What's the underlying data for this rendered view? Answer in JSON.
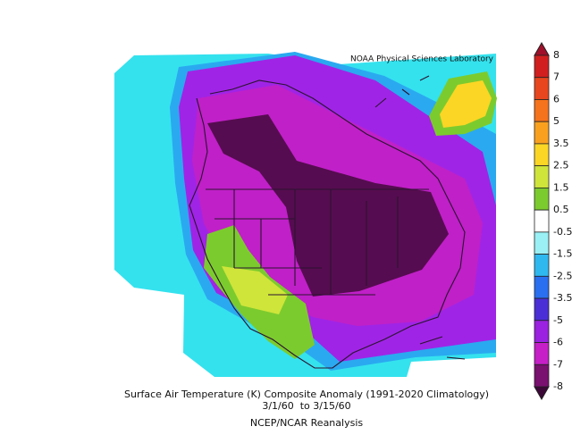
{
  "header": {
    "credit": "NOAA Physical Sciences Laboratory"
  },
  "caption": {
    "title": "Surface Air Temperature (K) Composite Anomaly (1991-2020 Climatology)",
    "dates": "3/1/60  to 3/15/60",
    "source": "NCEP/NCAR Reanalysis"
  },
  "colorbar": {
    "levels": [
      8,
      7,
      6,
      5,
      3.5,
      2.5,
      1.5,
      0.5,
      -0.5,
      -1.5,
      -2.5,
      -3.5,
      -5,
      -6,
      -7,
      -8
    ],
    "colors": [
      "#d11f1f",
      "#e8461e",
      "#f5731c",
      "#f9a11f",
      "#fbd624",
      "#cfe53a",
      "#7ccb2e",
      "#ffffff",
      "#9af0f5",
      "#2fb8f0",
      "#2a6ff0",
      "#4b2fd6",
      "#9a22e0",
      "#c61fc8",
      "#7a1070"
    ],
    "over_color": "#a0102a",
    "under_color": "#3c0838"
  }
}
